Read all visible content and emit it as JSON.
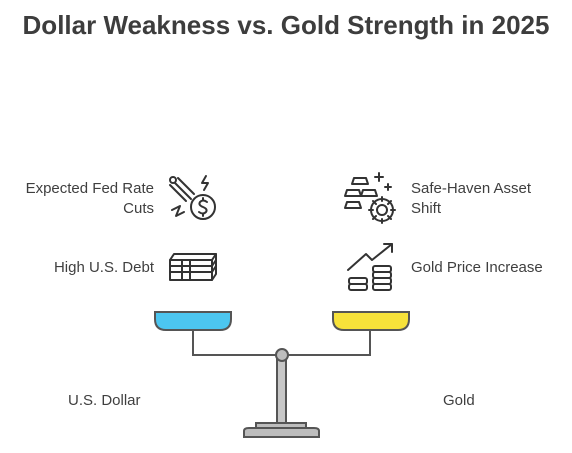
{
  "title": "Dollar Weakness vs. Gold Strength in 2025",
  "left_side": {
    "factors": [
      "Expected Fed Rate Cuts",
      "High U.S. Debt"
    ],
    "pan_label": "U.S. Dollar",
    "pan_color": "#4cc6f0"
  },
  "right_side": {
    "factors": [
      "Safe-Haven Asset Shift",
      "Gold Price Increase"
    ],
    "pan_label": "Gold",
    "pan_color": "#f7e23a"
  },
  "icons": {
    "fed_rate": "rate-cut-dollar-icon",
    "debt": "money-stack-icon",
    "safe_haven": "gold-bars-shield-icon",
    "gold_price": "rising-chart-coins-icon"
  }
}
